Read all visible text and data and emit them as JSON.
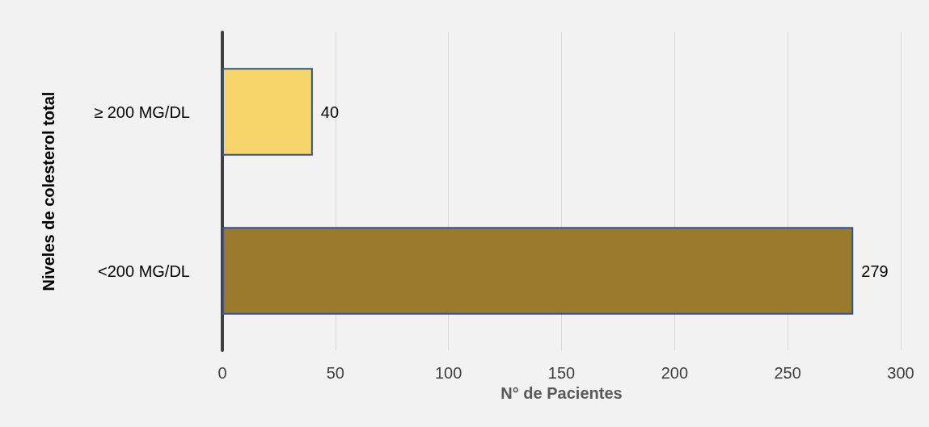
{
  "chart_data": {
    "type": "bar",
    "orientation": "horizontal",
    "categories": [
      "≥ 200 MG/DL",
      "<200 MG/DL"
    ],
    "values": [
      40,
      279
    ],
    "colors": [
      "#f6d46a",
      "#9a7a2c"
    ],
    "xlabel": "N° de Pacientes",
    "ylabel": "Niveles de colesterol total",
    "xlim": [
      0,
      300
    ],
    "xticks": [
      0,
      50,
      100,
      150,
      200,
      250,
      300
    ],
    "grid": "x",
    "data_labels": true
  }
}
